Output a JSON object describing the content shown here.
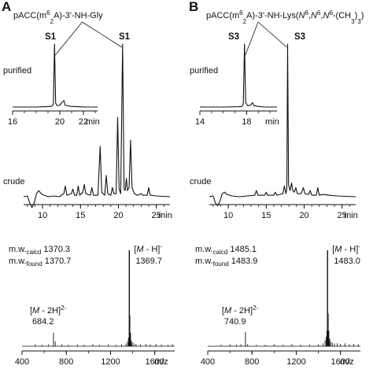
{
  "chart_data": [
    {
      "type": "line",
      "panel": "A",
      "compound": {
        "parts": [
          {
            "t": "pACC(m",
            "s": "n"
          },
          {
            "t": "6",
            "s": "sup"
          },
          {
            "t": "2",
            "s": "sub"
          },
          {
            "t": "A)-3'-NH-Gly",
            "s": "n"
          }
        ]
      },
      "peak_label": "S1",
      "purified": {
        "label": "purified",
        "xlabel": "min",
        "xlim": [
          16,
          23.2
        ],
        "ticks": [
          16,
          20,
          22
        ],
        "tick_labels": [
          "16",
          "20",
          "22"
        ],
        "trace": [
          [
            16.0,
            0
          ],
          [
            18.0,
            0
          ],
          [
            18.8,
            0.005
          ],
          [
            19.3,
            0.01
          ],
          [
            19.45,
            0.04
          ],
          [
            19.55,
            1.0
          ],
          [
            19.65,
            0.06
          ],
          [
            19.8,
            0.02
          ],
          [
            20.0,
            0.03
          ],
          [
            20.25,
            0.09
          ],
          [
            20.35,
            0.1
          ],
          [
            20.45,
            0.03
          ],
          [
            20.9,
            0.01
          ],
          [
            21.5,
            0.005
          ],
          [
            22.2,
            0
          ],
          [
            23.2,
            0
          ]
        ]
      },
      "crude": {
        "label": "crude",
        "xlabel": "min",
        "xlim": [
          7.5,
          26.8
        ],
        "ticks": [
          10,
          15,
          20,
          25
        ],
        "tick_labels": [
          "10",
          "15",
          "20",
          "25"
        ],
        "trace": [
          [
            7.5,
            0
          ],
          [
            8.0,
            0.005
          ],
          [
            8.3,
            -0.04
          ],
          [
            8.6,
            -0.07
          ],
          [
            8.9,
            -0.04
          ],
          [
            9.2,
            0.02
          ],
          [
            9.5,
            0.04
          ],
          [
            9.8,
            0.02
          ],
          [
            10.2,
            0.01
          ],
          [
            10.8,
            0
          ],
          [
            11.5,
            0.005
          ],
          [
            12.2,
            0
          ],
          [
            12.8,
            0.02
          ],
          [
            13.0,
            0.07
          ],
          [
            13.2,
            0.01
          ],
          [
            13.8,
            0.02
          ],
          [
            14.0,
            0.05
          ],
          [
            14.2,
            0.01
          ],
          [
            14.5,
            0.01
          ],
          [
            14.7,
            0.07
          ],
          [
            14.9,
            0.01
          ],
          [
            15.3,
            0.03
          ],
          [
            15.5,
            0.08
          ],
          [
            15.7,
            0.02
          ],
          [
            16.3,
            0.01
          ],
          [
            16.5,
            0.06
          ],
          [
            16.7,
            0.01
          ],
          [
            17.3,
            0.01
          ],
          [
            17.6,
            0.33
          ],
          [
            17.8,
            0.03
          ],
          [
            18.2,
            0.01
          ],
          [
            18.4,
            0.14
          ],
          [
            18.6,
            0.02
          ],
          [
            19.0,
            0.01
          ],
          [
            19.2,
            0.06
          ],
          [
            19.4,
            0.02
          ],
          [
            19.7,
            0.02
          ],
          [
            19.9,
            0.52
          ],
          [
            20.1,
            0.05
          ],
          [
            20.3,
            0.02
          ],
          [
            20.55,
            1.0
          ],
          [
            20.75,
            0.05
          ],
          [
            20.9,
            0.04
          ],
          [
            21.05,
            0.12
          ],
          [
            21.2,
            0.04
          ],
          [
            21.4,
            0.06
          ],
          [
            21.6,
            0.37
          ],
          [
            21.8,
            0.06
          ],
          [
            22.1,
            0.02
          ],
          [
            22.5,
            0.01
          ],
          [
            23.0,
            0.02
          ],
          [
            23.2,
            0.01
          ],
          [
            23.8,
            0.01
          ],
          [
            24.0,
            0.06
          ],
          [
            24.2,
            0.01
          ],
          [
            25.0,
            0.005
          ],
          [
            26.8,
            0
          ]
        ]
      },
      "ms": {
        "calcd_label": "m.w.",
        "calcd_sub": "calcd",
        "calcd_value": "1370.3",
        "found_label": "m.w.",
        "found_sub": "found",
        "found_value": "1370.7",
        "ion1": {
          "ion": "M",
          "rest": " - H]",
          "sup": "-"
        },
        "ion1_value": "1369.7",
        "ion2": {
          "ion": "M",
          "rest": " - 2H]",
          "sup": "2-"
        },
        "ion2_value": "684.2",
        "xlabel": "m/z",
        "xlim": [
          400,
          1780
        ],
        "ticks": [
          400,
          800,
          1200,
          1600
        ],
        "tick_labels": [
          "400",
          "800",
          "1200",
          "1600"
        ],
        "peaks": [
          [
            520,
            0.02
          ],
          [
            580,
            0.015
          ],
          [
            640,
            0.02
          ],
          [
            684.2,
            0.14
          ],
          [
            700,
            0.05
          ],
          [
            760,
            0.02
          ],
          [
            820,
            0.015
          ],
          [
            900,
            0.02
          ],
          [
            960,
            0.015
          ],
          [
            1040,
            0.02
          ],
          [
            1100,
            0.015
          ],
          [
            1180,
            0.02
          ],
          [
            1250,
            0.015
          ],
          [
            1300,
            0.02
          ],
          [
            1340,
            0.03
          ],
          [
            1355,
            0.05
          ],
          [
            1362,
            0.09
          ],
          [
            1369.7,
            1.0
          ],
          [
            1375,
            0.32
          ],
          [
            1381,
            0.14
          ],
          [
            1388,
            0.06
          ],
          [
            1395,
            0.04
          ],
          [
            1410,
            0.03
          ],
          [
            1430,
            0.025
          ],
          [
            1470,
            0.02
          ],
          [
            1520,
            0.025
          ],
          [
            1560,
            0.02
          ],
          [
            1610,
            0.025
          ],
          [
            1660,
            0.02
          ],
          [
            1720,
            0.015
          ],
          [
            1760,
            0.02
          ]
        ]
      }
    },
    {
      "type": "line",
      "panel": "B",
      "compound": {
        "parts": [
          {
            "t": "pACC(m",
            "s": "n"
          },
          {
            "t": "6",
            "s": "sup"
          },
          {
            "t": "2",
            "s": "sub"
          },
          {
            "t": "A)-3'-NH-Lys(",
            "s": "n"
          },
          {
            "t": "N",
            "s": "i"
          },
          {
            "t": "6",
            "s": "sup"
          },
          {
            "t": ",",
            "s": "n"
          },
          {
            "t": "N",
            "s": "i"
          },
          {
            "t": "6",
            "s": "sup"
          },
          {
            "t": ",",
            "s": "n"
          },
          {
            "t": "N",
            "s": "i"
          },
          {
            "t": "6",
            "s": "sup"
          },
          {
            "t": "-(CH",
            "s": "n"
          },
          {
            "t": "3",
            "s": "sub"
          },
          {
            "t": ")",
            "s": "n"
          },
          {
            "t": "3",
            "s": "sub"
          },
          {
            "t": ")",
            "s": "n"
          }
        ]
      },
      "peak_label": "S3",
      "purified": {
        "label": "purified",
        "xlabel": "min",
        "xlim": [
          14,
          20.6
        ],
        "ticks": [
          14,
          18
        ],
        "tick_labels": [
          "14",
          "18"
        ],
        "trace": [
          [
            14.0,
            0
          ],
          [
            16.2,
            0
          ],
          [
            17.3,
            0.005
          ],
          [
            17.6,
            0.01
          ],
          [
            17.72,
            0.05
          ],
          [
            17.82,
            1.0
          ],
          [
            17.92,
            0.07
          ],
          [
            18.1,
            0.02
          ],
          [
            18.35,
            0.03
          ],
          [
            18.5,
            0.07
          ],
          [
            18.65,
            0.02
          ],
          [
            19.0,
            0.01
          ],
          [
            19.6,
            0
          ],
          [
            20.6,
            0
          ]
        ]
      },
      "crude": {
        "label": "crude",
        "xlabel": "min",
        "xlim": [
          7.5,
          26.8
        ],
        "ticks": [
          10,
          15,
          20,
          25
        ],
        "tick_labels": [
          "10",
          "15",
          "20",
          "25"
        ],
        "trace": [
          [
            7.5,
            0
          ],
          [
            8.0,
            0.005
          ],
          [
            8.3,
            -0.04
          ],
          [
            8.6,
            -0.06
          ],
          [
            8.9,
            -0.03
          ],
          [
            9.2,
            0.02
          ],
          [
            9.5,
            0.03
          ],
          [
            9.8,
            0.015
          ],
          [
            10.5,
            0.005
          ],
          [
            11.5,
            0
          ],
          [
            12.5,
            0.005
          ],
          [
            13.5,
            0.01
          ],
          [
            13.7,
            0.04
          ],
          [
            13.9,
            0.01
          ],
          [
            14.8,
            0.01
          ],
          [
            15.0,
            0.03
          ],
          [
            15.2,
            0.01
          ],
          [
            16.0,
            0.01
          ],
          [
            16.2,
            0.03
          ],
          [
            16.4,
            0.01
          ],
          [
            17.2,
            0.02
          ],
          [
            17.4,
            0.07
          ],
          [
            17.6,
            0.02
          ],
          [
            17.72,
            0.05
          ],
          [
            17.82,
            1.0
          ],
          [
            17.95,
            0.08
          ],
          [
            18.15,
            0.04
          ],
          [
            18.35,
            0.09
          ],
          [
            18.5,
            0.04
          ],
          [
            18.7,
            0.03
          ],
          [
            18.9,
            0.06
          ],
          [
            19.1,
            0.02
          ],
          [
            19.6,
            0.02
          ],
          [
            19.9,
            0.06
          ],
          [
            20.1,
            0.02
          ],
          [
            20.6,
            0.015
          ],
          [
            20.8,
            0.04
          ],
          [
            21.0,
            0.01
          ],
          [
            21.6,
            0.01
          ],
          [
            21.8,
            0.06
          ],
          [
            22.0,
            0.01
          ],
          [
            22.5,
            0.015
          ],
          [
            23.3,
            0.01
          ],
          [
            24.3,
            0.005
          ],
          [
            26.8,
            0
          ]
        ]
      },
      "ms": {
        "calcd_label": "m.w.",
        "calcd_sub": "calcd",
        "calcd_value": "1485.1",
        "found_label": "m.w.",
        "found_sub": "found",
        "found_value": "1483.9",
        "ion1": {
          "ion": "M",
          "rest": " - H]",
          "sup": "-"
        },
        "ion1_value": "1483.0",
        "ion2": {
          "ion": "M",
          "rest": " - 2H]",
          "sup": "2-"
        },
        "ion2_value": "740.9",
        "xlabel": "m/z",
        "xlim": [
          400,
          1780
        ],
        "ticks": [
          400,
          800,
          1200,
          1600
        ],
        "tick_labels": [
          "400",
          "800",
          "1200",
          "1600"
        ],
        "peaks": [
          [
            520,
            0.015
          ],
          [
            600,
            0.02
          ],
          [
            660,
            0.015
          ],
          [
            700,
            0.02
          ],
          [
            740.9,
            0.15
          ],
          [
            760,
            0.02
          ],
          [
            840,
            0.015
          ],
          [
            920,
            0.015
          ],
          [
            1000,
            0.02
          ],
          [
            1080,
            0.015
          ],
          [
            1160,
            0.02
          ],
          [
            1240,
            0.015
          ],
          [
            1320,
            0.02
          ],
          [
            1400,
            0.02
          ],
          [
            1440,
            0.03
          ],
          [
            1460,
            0.06
          ],
          [
            1470,
            0.1
          ],
          [
            1477,
            0.16
          ],
          [
            1483.0,
            1.0
          ],
          [
            1489,
            0.34
          ],
          [
            1495,
            0.16
          ],
          [
            1502,
            0.08
          ],
          [
            1510,
            0.05
          ],
          [
            1525,
            0.04
          ],
          [
            1545,
            0.03
          ],
          [
            1570,
            0.03
          ],
          [
            1600,
            0.025
          ],
          [
            1640,
            0.03
          ],
          [
            1680,
            0.02
          ],
          [
            1720,
            0.025
          ],
          [
            1760,
            0.02
          ]
        ]
      }
    }
  ]
}
